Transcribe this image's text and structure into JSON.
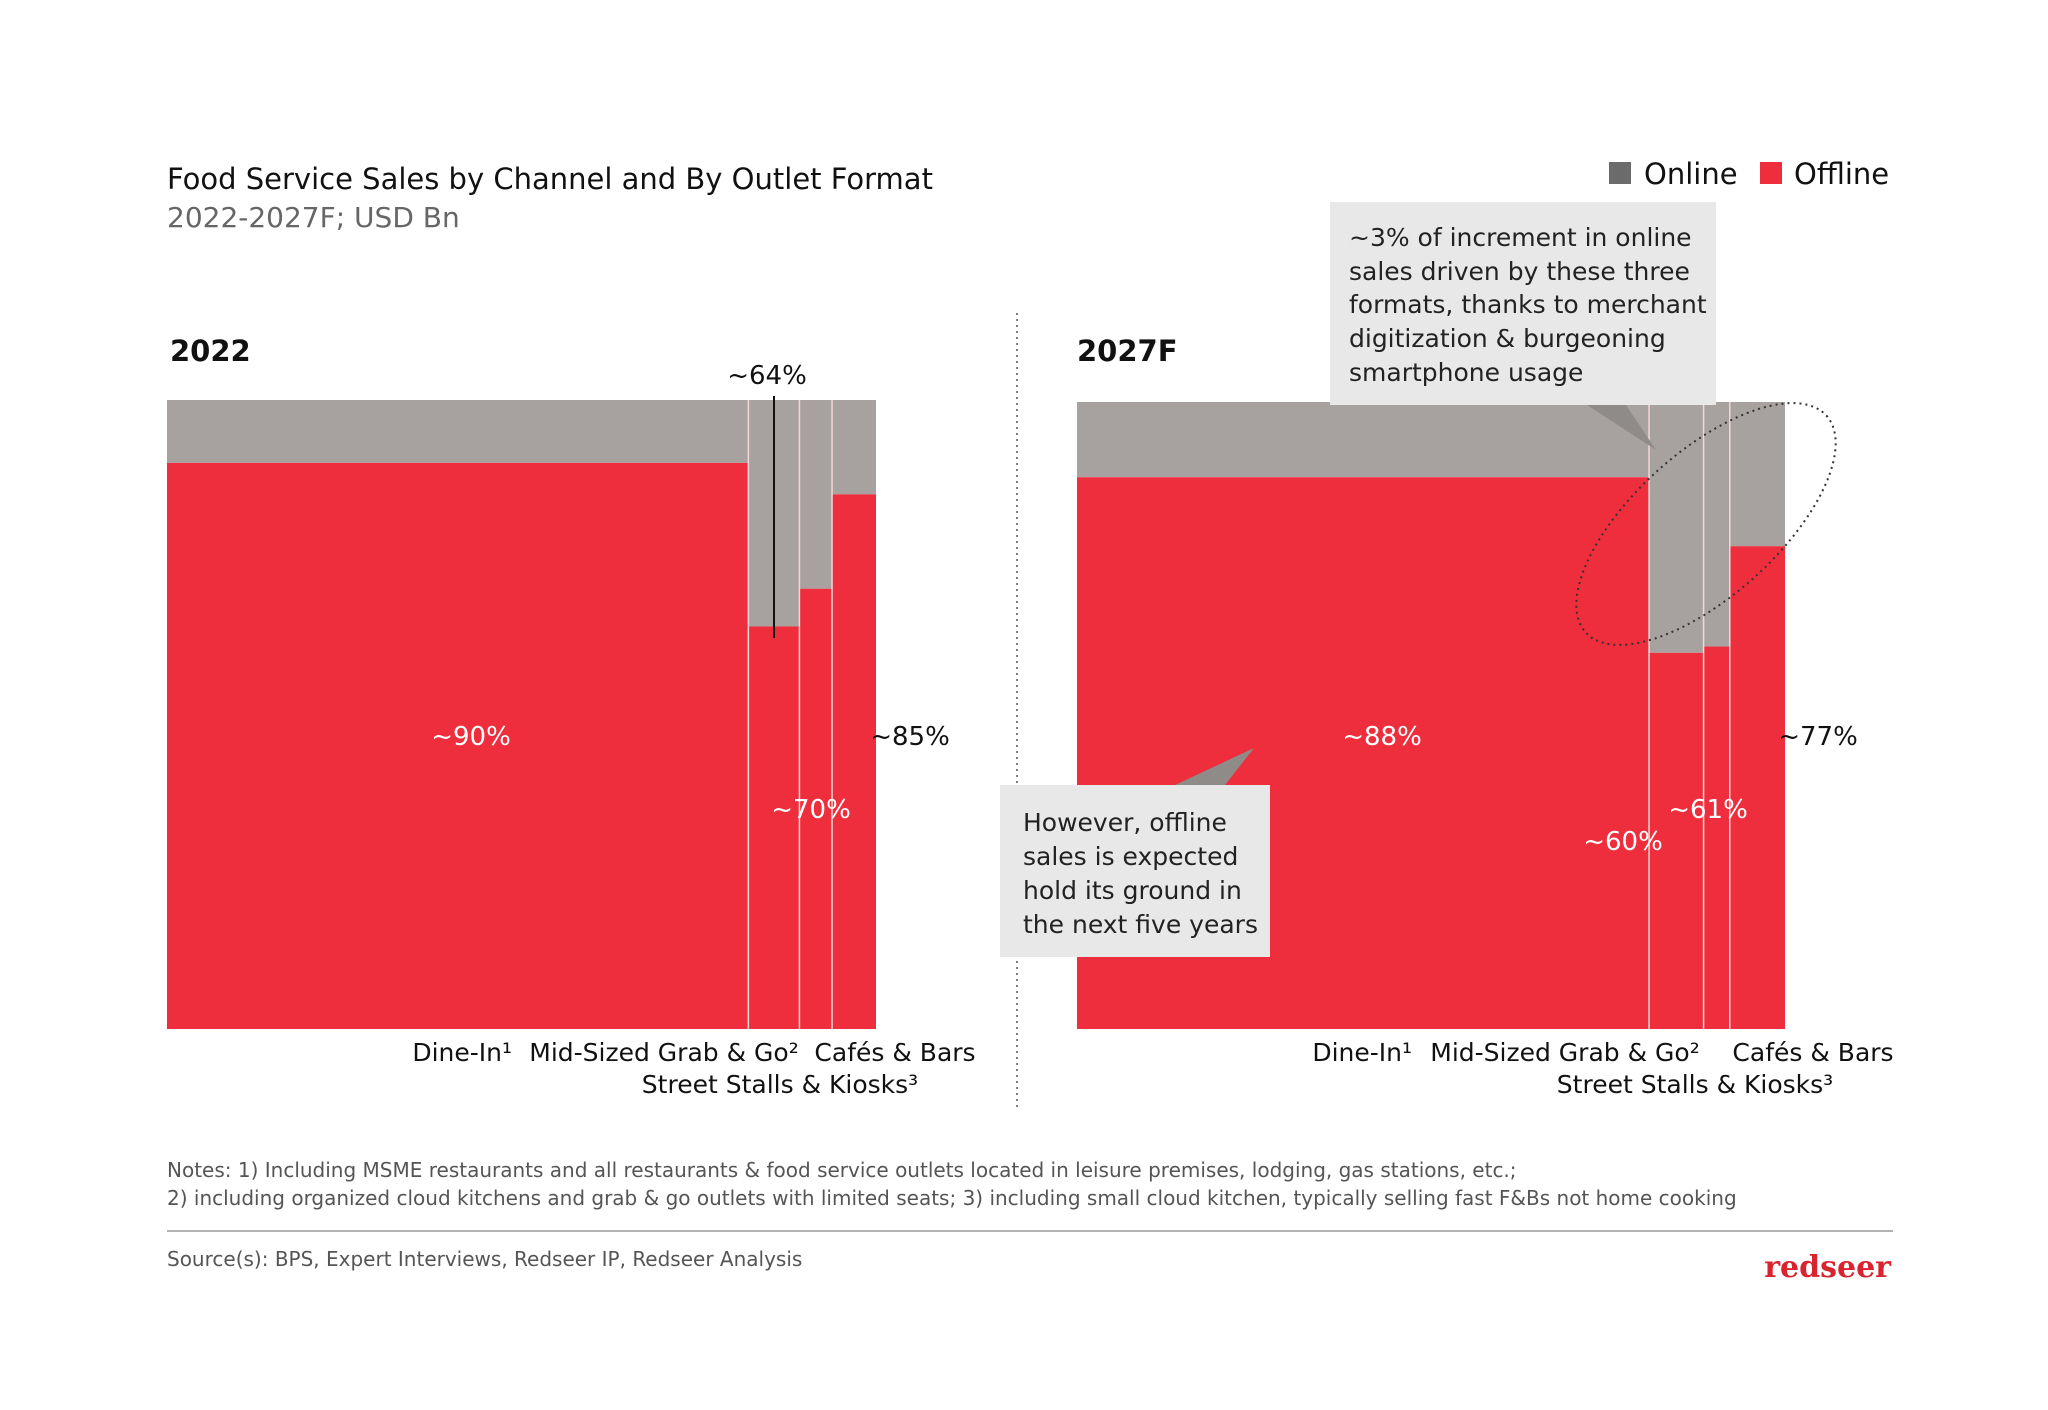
{
  "title": "Food Service Sales by Channel and By Outlet Format",
  "subtitle": "2022-2027F; USD Bn",
  "legend": [
    {
      "label": "Online",
      "color": "#6b6b6b"
    },
    {
      "label": "Offline",
      "color": "#ee2e3c"
    }
  ],
  "colors": {
    "online": "#a7a2a0",
    "offline": "#ee2e3c",
    "online_legend": "#6b6b6b"
  },
  "chart_data": [
    {
      "type": "marimekko",
      "title": "2022",
      "categories": [
        "Dine-In¹",
        "Mid-Sized Grab & Go²",
        "Street Stalls & Kiosks³",
        "Cafés & Bars"
      ],
      "share_of_total_estimate": [
        0.82,
        0.072,
        0.046,
        0.062
      ],
      "series": [
        {
          "name": "Offline",
          "values": [
            90,
            64,
            70,
            85
          ]
        },
        {
          "name": "Online",
          "values": [
            10,
            36,
            30,
            15
          ]
        }
      ],
      "labels": [
        "~90%",
        "~64%",
        "~70%",
        "~85%"
      ]
    },
    {
      "type": "marimekko",
      "title": "2027F",
      "categories": [
        "Dine-In¹",
        "Mid-Sized Grab & Go²",
        "Street Stalls & Kiosks³",
        "Cafés & Bars"
      ],
      "share_of_total_estimate": [
        0.808,
        0.077,
        0.037,
        0.078
      ],
      "series": [
        {
          "name": "Offline",
          "values": [
            88,
            60,
            61,
            77
          ]
        },
        {
          "name": "Online",
          "values": [
            12,
            40,
            39,
            23
          ]
        }
      ],
      "labels": [
        "~88%",
        "~60%",
        "~61%",
        "~77%"
      ]
    }
  ],
  "callouts": {
    "online": [
      "~3% of increment in online",
      "sales driven by these three",
      "formats, thanks to merchant",
      "digitization & burgeoning",
      "smartphone usage"
    ],
    "offline": [
      "However, offline",
      "sales is expected",
      "hold its ground in",
      "the next five years"
    ]
  },
  "notes": [
    "Notes: 1) Including MSME restaurants and all restaurants & food service outlets located in leisure premises, lodging, gas stations, etc.;",
    "2) including organized cloud kitchens and grab & go outlets with limited seats; 3) including small cloud kitchen, typically selling fast F&Bs not home cooking"
  ],
  "source": "Source(s): BPS, Expert Interviews, Redseer IP, Redseer Analysis",
  "logo": "redseer"
}
